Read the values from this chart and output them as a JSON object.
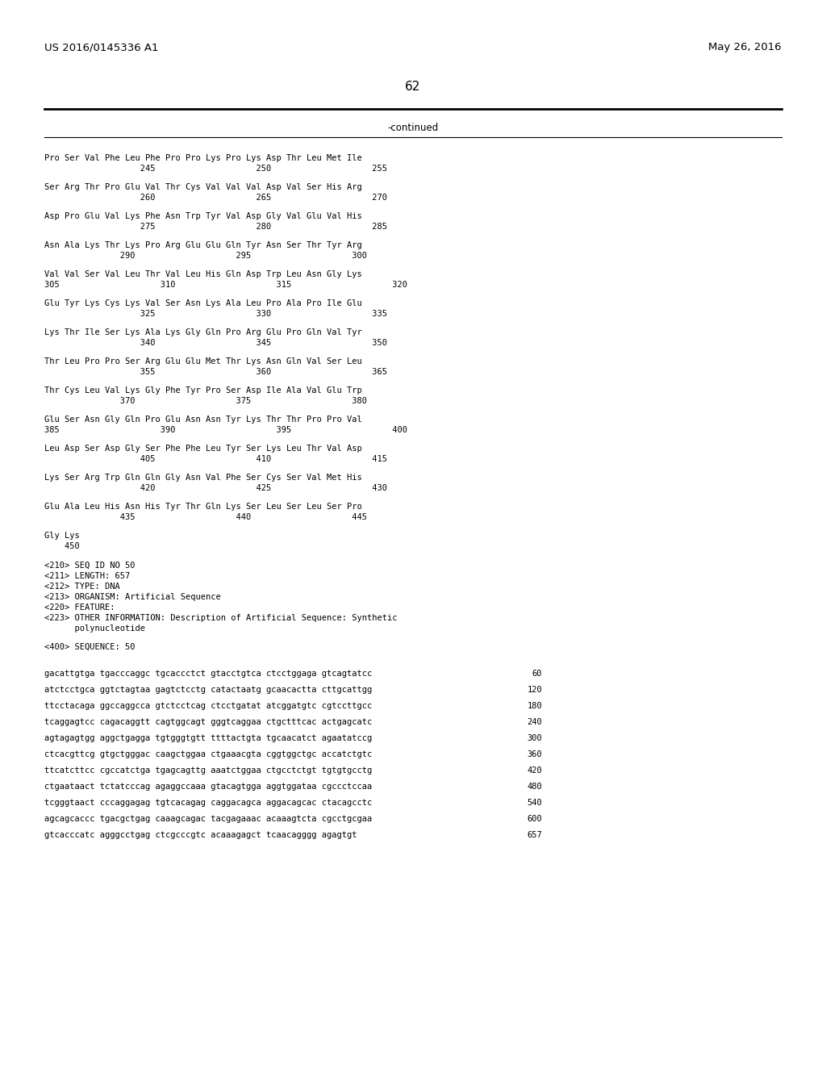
{
  "header_left": "US 2016/0145336 A1",
  "header_right": "May 26, 2016",
  "page_number": "62",
  "continued_text": "-continued",
  "background_color": "#ffffff",
  "text_color": "#000000",
  "sequence_blocks": [
    {
      "aa": "Pro Ser Val Phe Leu Phe Pro Pro Lys Pro Lys Asp Thr Leu Met Ile",
      "num": "                   245                    250                    255"
    },
    {
      "aa": "Ser Arg Thr Pro Glu Val Thr Cys Val Val Val Asp Val Ser His Arg",
      "num": "                   260                    265                    270"
    },
    {
      "aa": "Asp Pro Glu Val Lys Phe Asn Trp Tyr Val Asp Gly Val Glu Val His",
      "num": "                   275                    280                    285"
    },
    {
      "aa": "Asn Ala Lys Thr Lys Pro Arg Glu Glu Gln Tyr Asn Ser Thr Tyr Arg",
      "num": "               290                    295                    300"
    },
    {
      "aa": "Val Val Ser Val Leu Thr Val Leu His Gln Asp Trp Leu Asn Gly Lys",
      "num": "305                    310                    315                    320"
    },
    {
      "aa": "Glu Tyr Lys Cys Lys Val Ser Asn Lys Ala Leu Pro Ala Pro Ile Glu",
      "num": "                   325                    330                    335"
    },
    {
      "aa": "Lys Thr Ile Ser Lys Ala Lys Gly Gln Pro Arg Glu Pro Gln Val Tyr",
      "num": "                   340                    345                    350"
    },
    {
      "aa": "Thr Leu Pro Pro Ser Arg Glu Glu Met Thr Lys Asn Gln Val Ser Leu",
      "num": "                   355                    360                    365"
    },
    {
      "aa": "Thr Cys Leu Val Lys Gly Phe Tyr Pro Ser Asp Ile Ala Val Glu Trp",
      "num": "               370                    375                    380"
    },
    {
      "aa": "Glu Ser Asn Gly Gln Pro Glu Asn Asn Tyr Lys Thr Thr Pro Pro Val",
      "num": "385                    390                    395                    400"
    },
    {
      "aa": "Leu Asp Ser Asp Gly Ser Phe Phe Leu Tyr Ser Lys Leu Thr Val Asp",
      "num": "                   405                    410                    415"
    },
    {
      "aa": "Lys Ser Arg Trp Gln Gln Gly Asn Val Phe Ser Cys Ser Val Met His",
      "num": "                   420                    425                    430"
    },
    {
      "aa": "Glu Ala Leu His Asn His Tyr Thr Gln Lys Ser Leu Ser Leu Ser Pro",
      "num": "               435                    440                    445"
    },
    {
      "aa": "Gly Lys",
      "num": "    450"
    }
  ],
  "metadata_lines": [
    "<210> SEQ ID NO 50",
    "<211> LENGTH: 657",
    "<212> TYPE: DNA",
    "<213> ORGANISM: Artificial Sequence",
    "<220> FEATURE:",
    "<223> OTHER INFORMATION: Description of Artificial Sequence: Synthetic",
    "      polynucleotide"
  ],
  "sequence_label": "<400> SEQUENCE: 50",
  "dna_lines": [
    {
      "seq": "gacattgtga tgacccaggc tgcaccctct gtacctgtca ctcctggaga gtcagtatcc",
      "num": "60"
    },
    {
      "seq": "atctcctgca ggtctagtaa gagtctcctg catactaatg gcaacactta cttgcattgg",
      "num": "120"
    },
    {
      "seq": "ttcctacaga ggccaggcca gtctcctcag ctcctgatat atcggatgtc cgtccttgcc",
      "num": "180"
    },
    {
      "seq": "tcaggagtcc cagacaggtt cagtggcagt gggtcaggaa ctgctttcac actgagcatc",
      "num": "240"
    },
    {
      "seq": "agtagagtgg aggctgagga tgtgggtgtt ttttactgta tgcaacatct agaatatccg",
      "num": "300"
    },
    {
      "seq": "ctcacgttcg gtgctgggac caagctggaa ctgaaacgta cggtggctgc accatctgtc",
      "num": "360"
    },
    {
      "seq": "ttcatcttcc cgccatctga tgagcagttg aaatctggaa ctgcctctgt tgtgtgcctg",
      "num": "420"
    },
    {
      "seq": "ctgaataact tctatcccag agaggccaaa gtacagtgga aggtggataa cgccctccaa",
      "num": "480"
    },
    {
      "seq": "tcgggtaact cccaggagag tgtcacagag caggacagca aggacagcac ctacagcctc",
      "num": "540"
    },
    {
      "seq": "agcagcaccc tgacgctgag caaagcagac tacgagaaac acaaagtcta cgcctgcgaa",
      "num": "600"
    },
    {
      "seq": "gtcacccatc agggcctgag ctcgcccgtc acaaagagct tcaacagggg agagtgt",
      "num": "657"
    }
  ]
}
